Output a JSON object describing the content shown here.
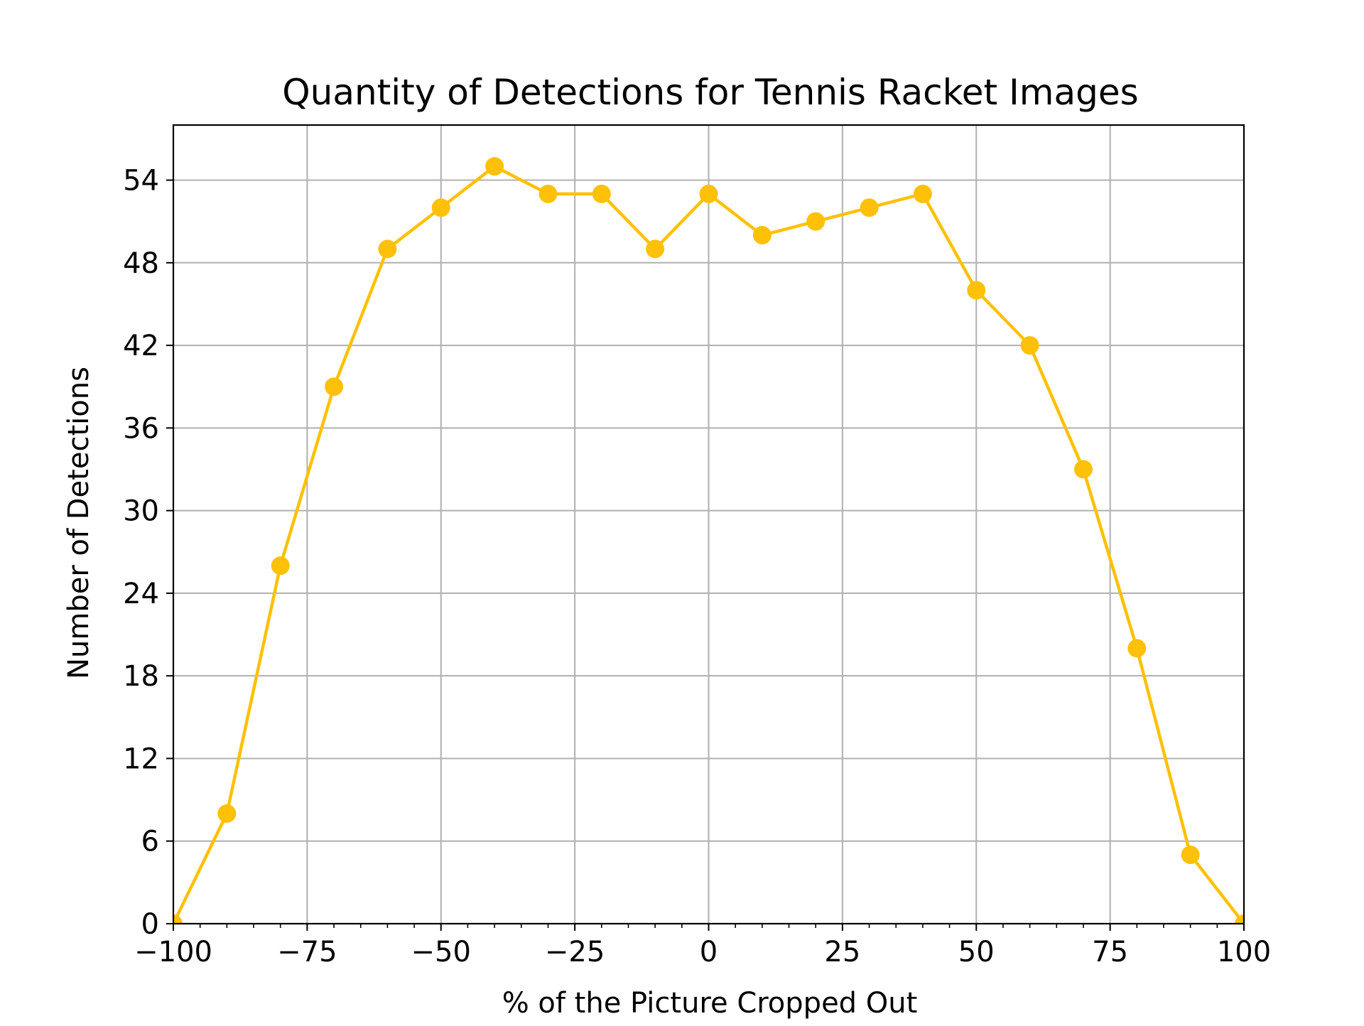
{
  "chart_data": {
    "type": "line",
    "title": "Quantity of Detections for Tennis Racket Images",
    "xlabel": "% of the Picture Cropped Out",
    "ylabel": "Number of Detections",
    "xlim": [
      -100,
      100
    ],
    "ylim": [
      0,
      58
    ],
    "x_ticks": [
      -100,
      -75,
      -50,
      -25,
      0,
      25,
      50,
      75,
      100
    ],
    "x_tick_labels": [
      "−100",
      "−75",
      "−50",
      "−25",
      "0",
      "25",
      "50",
      "75",
      "100"
    ],
    "y_ticks": [
      0,
      6,
      12,
      18,
      24,
      30,
      36,
      42,
      48,
      54
    ],
    "y_tick_labels": [
      "0",
      "6",
      "12",
      "18",
      "24",
      "30",
      "36",
      "42",
      "48",
      "54"
    ],
    "x_minor_step": 5,
    "grid": true,
    "x": [
      -100,
      -90,
      -80,
      -70,
      -60,
      -50,
      -40,
      -30,
      -20,
      -10,
      0,
      10,
      20,
      30,
      40,
      50,
      60,
      70,
      80,
      90,
      100
    ],
    "series": [
      {
        "values": [
          0,
          8,
          26,
          39,
          49,
          52,
          55,
          53,
          53,
          49,
          53,
          50,
          51,
          52,
          53,
          46,
          42,
          33,
          20,
          5,
          0
        ],
        "color": "#FFC107"
      }
    ]
  },
  "colors": {
    "grid": "#b0b0b0",
    "axis": "#000000",
    "line": "#FFC107"
  }
}
